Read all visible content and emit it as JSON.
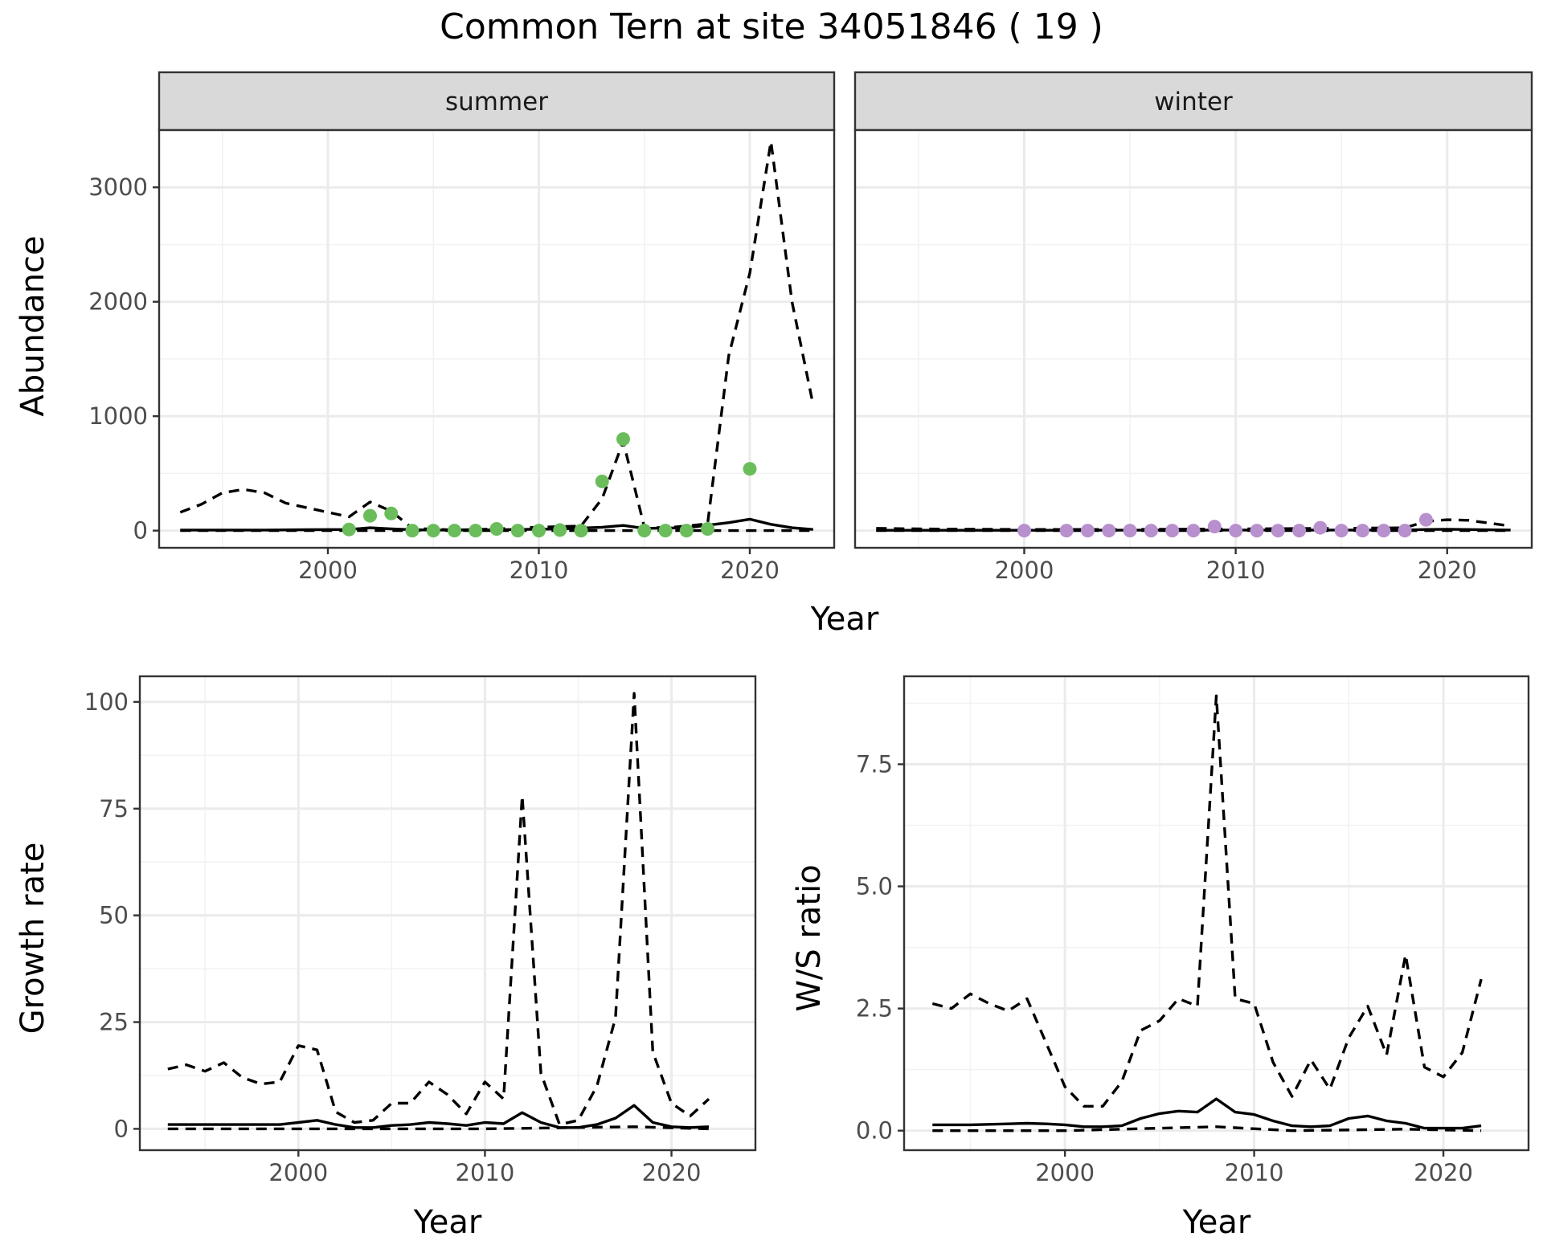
{
  "title": "Common Tern at site 34051846 ( 19 )",
  "colors": {
    "summer_points": "#6bbd5b",
    "winter_points": "#b890ce",
    "lines": "#000000"
  },
  "chart_data": [
    {
      "id": "abundance-summer",
      "type": "line",
      "strip": "summer",
      "ylabel": "Abundance",
      "xlabel": "Year",
      "xlim": [
        1992,
        2024
      ],
      "ylim": [
        -150,
        3500
      ],
      "x_ticks": [
        2000,
        2010,
        2020
      ],
      "y_ticks": [
        0,
        1000,
        2000,
        3000
      ],
      "series": [
        {
          "style": "solid",
          "x": [
            1993,
            1995,
            1997,
            1999,
            2001,
            2002,
            2003,
            2004,
            2005,
            2007,
            2009,
            2011,
            2013,
            2014,
            2015,
            2017,
            2019,
            2020,
            2021,
            2022,
            2023
          ],
          "y": [
            5,
            5,
            5,
            8,
            10,
            25,
            15,
            8,
            5,
            5,
            10,
            15,
            30,
            45,
            20,
            25,
            70,
            100,
            55,
            25,
            10
          ]
        },
        {
          "style": "dashed",
          "x": [
            1993,
            1994,
            1995,
            1996,
            1997,
            1998,
            1999,
            2000,
            2001,
            2002,
            2003,
            2004,
            2006,
            2008,
            2010,
            2012,
            2013,
            2014,
            2015,
            2016,
            2017,
            2018,
            2019,
            2020,
            2021,
            2022,
            2023
          ],
          "y": [
            160,
            230,
            330,
            360,
            330,
            240,
            200,
            160,
            120,
            250,
            170,
            20,
            5,
            15,
            30,
            40,
            280,
            780,
            30,
            25,
            40,
            60,
            1530,
            2250,
            3400,
            2000,
            1100
          ]
        },
        {
          "style": "dashed",
          "x": [
            1993,
            2023
          ],
          "y": [
            0,
            0
          ]
        }
      ],
      "points": {
        "color": "#6bbd5b",
        "x": [
          2001,
          2002,
          2003,
          2004,
          2005,
          2006,
          2007,
          2008,
          2009,
          2010,
          2011,
          2012,
          2013,
          2014,
          2015,
          2016,
          2017,
          2018,
          2020
        ],
        "y": [
          10,
          130,
          150,
          0,
          0,
          0,
          0,
          15,
          0,
          0,
          5,
          0,
          430,
          800,
          0,
          0,
          0,
          15,
          540
        ]
      }
    },
    {
      "id": "abundance-winter",
      "type": "line",
      "strip": "winter",
      "xlim": [
        1992,
        2024
      ],
      "ylim": [
        -150,
        3500
      ],
      "x_ticks": [
        2000,
        2010,
        2020
      ],
      "series": [
        {
          "style": "solid",
          "x": [
            1993,
            2000,
            2010,
            2018,
            2019,
            2020,
            2023
          ],
          "y": [
            3,
            3,
            5,
            5,
            10,
            12,
            5
          ]
        },
        {
          "style": "dashed",
          "x": [
            1993,
            1995,
            2000,
            2005,
            2010,
            2015,
            2018,
            2019,
            2020,
            2021,
            2023
          ],
          "y": [
            20,
            15,
            10,
            10,
            15,
            20,
            25,
            80,
            95,
            90,
            40
          ]
        },
        {
          "style": "dashed",
          "x": [
            1993,
            2023
          ],
          "y": [
            0,
            0
          ]
        }
      ],
      "points": {
        "color": "#b890ce",
        "x": [
          2000,
          2002,
          2003,
          2004,
          2005,
          2006,
          2007,
          2008,
          2009,
          2010,
          2011,
          2012,
          2013,
          2014,
          2015,
          2016,
          2017,
          2018,
          2019
        ],
        "y": [
          0,
          0,
          0,
          0,
          0,
          0,
          0,
          0,
          35,
          0,
          0,
          0,
          0,
          25,
          0,
          0,
          0,
          0,
          95
        ]
      }
    },
    {
      "id": "growth-rate",
      "type": "line",
      "ylabel": "Growth rate",
      "xlabel": "Year",
      "xlim": [
        1991.5,
        2024.5
      ],
      "ylim": [
        -5,
        106
      ],
      "x_ticks": [
        2000,
        2010,
        2020
      ],
      "y_ticks": [
        0,
        25,
        50,
        75,
        100
      ],
      "series": [
        {
          "style": "solid",
          "x": [
            1993,
            1994,
            1995,
            1996,
            1997,
            1998,
            1999,
            2000,
            2001,
            2002,
            2003,
            2004,
            2005,
            2006,
            2007,
            2008,
            2009,
            2010,
            2011,
            2012,
            2013,
            2014,
            2015,
            2016,
            2017,
            2018,
            2019,
            2020,
            2021,
            2022
          ],
          "y": [
            1,
            1,
            1,
            1,
            1,
            1,
            1,
            1.5,
            2,
            1,
            0.3,
            0.3,
            0.8,
            1,
            1.5,
            1.2,
            0.8,
            1.5,
            1.2,
            3.8,
            1.5,
            0.3,
            0.3,
            1,
            2.5,
            5.5,
            1.5,
            0.5,
            0.3,
            0.5
          ]
        },
        {
          "style": "dashed",
          "x": [
            1993,
            1994,
            1995,
            1996,
            1997,
            1998,
            1999,
            2000,
            2001,
            2002,
            2003,
            2004,
            2005,
            2006,
            2007,
            2008,
            2009,
            2010,
            2011,
            2012,
            2013,
            2014,
            2015,
            2016,
            2017,
            2018,
            2019,
            2020,
            2021,
            2022
          ],
          "y": [
            14,
            15,
            13.5,
            15.5,
            12,
            10.5,
            11,
            19.5,
            18.5,
            4,
            1.5,
            2,
            6,
            6,
            11,
            8,
            3.5,
            11,
            7,
            78,
            13,
            1,
            2,
            10,
            26,
            102,
            18,
            6,
            3,
            7
          ]
        },
        {
          "style": "dashed",
          "x": [
            1993,
            2000,
            2010,
            2018,
            2022
          ],
          "y": [
            0,
            0,
            0,
            0.5,
            0
          ]
        }
      ]
    },
    {
      "id": "ws-ratio",
      "type": "line",
      "ylabel": "W/S ratio",
      "xlabel": "Year",
      "xlim": [
        1991.5,
        2024.5
      ],
      "ylim": [
        -0.4,
        9.3
      ],
      "x_ticks": [
        2000,
        2010,
        2020
      ],
      "y_ticks": [
        0.0,
        2.5,
        5.0,
        7.5
      ],
      "y_tick_labels": [
        "0.0",
        "2.5",
        "5.0",
        "7.5"
      ],
      "series": [
        {
          "style": "solid",
          "x": [
            1993,
            1994,
            1995,
            1996,
            1997,
            1998,
            1999,
            2000,
            2001,
            2002,
            2003,
            2004,
            2005,
            2006,
            2007,
            2008,
            2009,
            2010,
            2011,
            2012,
            2013,
            2014,
            2015,
            2016,
            2017,
            2018,
            2019,
            2020,
            2021,
            2022
          ],
          "y": [
            0.12,
            0.12,
            0.12,
            0.13,
            0.14,
            0.15,
            0.14,
            0.12,
            0.08,
            0.08,
            0.1,
            0.25,
            0.35,
            0.4,
            0.38,
            0.65,
            0.38,
            0.33,
            0.2,
            0.1,
            0.08,
            0.1,
            0.25,
            0.3,
            0.2,
            0.15,
            0.05,
            0.05,
            0.05,
            0.1
          ]
        },
        {
          "style": "dashed",
          "x": [
            1993,
            1994,
            1995,
            1996,
            1997,
            1998,
            1999,
            2000,
            2001,
            2002,
            2003,
            2004,
            2005,
            2006,
            2007,
            2008,
            2009,
            2010,
            2011,
            2012,
            2013,
            2014,
            2015,
            2016,
            2017,
            2018,
            2019,
            2020,
            2021,
            2022
          ],
          "y": [
            2.6,
            2.5,
            2.8,
            2.6,
            2.45,
            2.7,
            1.8,
            0.9,
            0.5,
            0.5,
            1.0,
            2.05,
            2.25,
            2.7,
            2.55,
            8.9,
            2.7,
            2.6,
            1.4,
            0.7,
            1.45,
            0.85,
            1.9,
            2.55,
            1.55,
            3.6,
            1.3,
            1.1,
            1.6,
            3.1
          ]
        },
        {
          "style": "dashed",
          "x": [
            1993,
            2000,
            2005,
            2008,
            2012,
            2018,
            2022
          ],
          "y": [
            0,
            0,
            0.05,
            0.08,
            0,
            0.03,
            0
          ]
        }
      ]
    }
  ]
}
